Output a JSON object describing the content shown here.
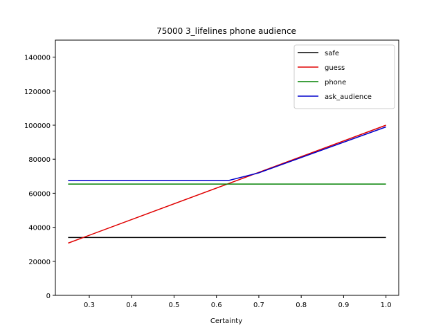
{
  "chart_data": {
    "type": "line",
    "title": "75000 3_lifelines phone audience",
    "xlabel": "Certainty",
    "ylabel": "",
    "xlim": [
      0.22,
      1.03
    ],
    "ylim": [
      0,
      150000
    ],
    "xticks": [
      0.3,
      0.4,
      0.5,
      0.6,
      0.7,
      0.8,
      0.9,
      1.0
    ],
    "xtick_labels": [
      "0.3",
      "0.4",
      "0.5",
      "0.6",
      "0.7",
      "0.8",
      "0.9",
      "1.0"
    ],
    "yticks": [
      0,
      20000,
      40000,
      60000,
      80000,
      100000,
      120000,
      140000
    ],
    "ytick_labels": [
      "0",
      "20000",
      "40000",
      "60000",
      "80000",
      "100000",
      "120000",
      "140000"
    ],
    "grid": false,
    "legend_position": "top-right",
    "series": [
      {
        "name": "safe",
        "color": "#000000",
        "x": [
          0.25,
          1.0
        ],
        "y": [
          34000,
          34000
        ]
      },
      {
        "name": "guess",
        "color": "#e00000",
        "x": [
          0.25,
          1.0
        ],
        "y": [
          30700,
          100000
        ]
      },
      {
        "name": "phone",
        "color": "#008000",
        "x": [
          0.25,
          1.0
        ],
        "y": [
          65400,
          65400
        ]
      },
      {
        "name": "ask_audience",
        "color": "#0000cc",
        "x": [
          0.25,
          0.63,
          0.7,
          1.0
        ],
        "y": [
          67600,
          67600,
          72000,
          99000
        ]
      }
    ]
  }
}
